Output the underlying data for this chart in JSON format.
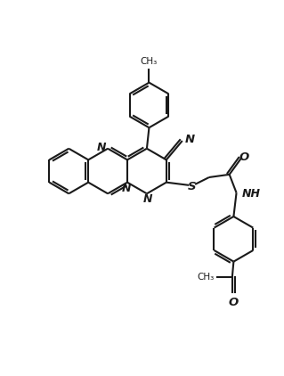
{
  "background": "#ffffff",
  "line_color": "#1a1a1a",
  "figsize": [
    3.19,
    4.22
  ],
  "dpi": 100,
  "xlim": [
    0,
    10
  ],
  "ylim": [
    0,
    13.2
  ]
}
